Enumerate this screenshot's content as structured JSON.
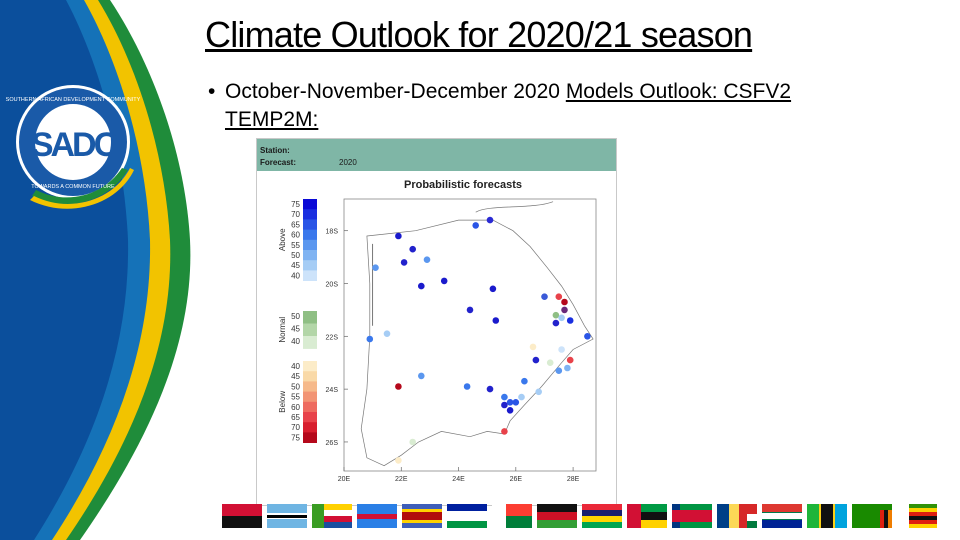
{
  "slide": {
    "title": "Climate Outlook for 2020/21 season",
    "bullet_symbol": "•",
    "bullet_plain": "October-November-December 2020 ",
    "bullet_underlined": "Models Outlook: CSFV2 TEMP2M:"
  },
  "logo": {
    "ring_text_top": "SOUTHERN AFRICAN DEVELOPMENT COMMUNITY",
    "ring_text_bottom": "TOWARDS A COMMON FUTURE",
    "monogram": "SADC",
    "icon": "sadc-logo-icon"
  },
  "figure": {
    "station_label": "Station:",
    "forecast_label": "Forecast:",
    "forecast_value": "2020",
    "title": "Probabilistic forecasts",
    "legend": {
      "groups": [
        {
          "label": "Above",
          "ticks": [
            "75",
            "70",
            "65",
            "60",
            "55",
            "50",
            "45",
            "40"
          ]
        },
        {
          "label": "Normal",
          "ticks": [
            "50",
            "45",
            "40"
          ]
        },
        {
          "label": "Below",
          "ticks": [
            "40",
            "45",
            "50",
            "55",
            "60",
            "65",
            "70",
            "75"
          ]
        }
      ],
      "colors": {
        "above": [
          "#0a0ad6",
          "#1a2fe0",
          "#2a55e6",
          "#3a78ec",
          "#5b97ef",
          "#7fb3f2",
          "#a6cdf5",
          "#cde3fa"
        ],
        "normal": [
          "#8fbf84",
          "#b3d6a8",
          "#d9ecd2"
        ],
        "below": [
          "#fcecc8",
          "#f9d9a7",
          "#f6b98a",
          "#f29474",
          "#ee6b5f",
          "#e8424a",
          "#d81e2e",
          "#b5081b"
        ]
      }
    },
    "map": {
      "y_ticks": [
        "18S",
        "20S",
        "22S",
        "24S",
        "26S"
      ],
      "x_ticks": [
        "20E",
        "22E",
        "24E",
        "26E",
        "28E"
      ],
      "x_range": [
        20,
        28.8
      ],
      "y_range": [
        -16.8,
        -27.1
      ],
      "stations": [
        {
          "lon": 24.6,
          "lat": -17.8,
          "color": "#2a55e6"
        },
        {
          "lon": 25.1,
          "lat": -17.6,
          "color": "#2a2ad4"
        },
        {
          "lon": 21.9,
          "lat": -18.2,
          "color": "#1a1acc"
        },
        {
          "lon": 22.4,
          "lat": -18.7,
          "color": "#2222cc"
        },
        {
          "lon": 22.1,
          "lat": -19.2,
          "color": "#2222cc"
        },
        {
          "lon": 22.9,
          "lat": -19.1,
          "color": "#5b97ef"
        },
        {
          "lon": 21.1,
          "lat": -19.4,
          "color": "#5b97ef"
        },
        {
          "lon": 23.5,
          "lat": -19.9,
          "color": "#1a1acc"
        },
        {
          "lon": 22.7,
          "lat": -20.1,
          "color": "#1a1acc"
        },
        {
          "lon": 25.2,
          "lat": -20.2,
          "color": "#1a1acc"
        },
        {
          "lon": 27.0,
          "lat": -20.5,
          "color": "#3a5ad8"
        },
        {
          "lon": 24.4,
          "lat": -21.0,
          "color": "#2222cc"
        },
        {
          "lon": 25.3,
          "lat": -21.4,
          "color": "#1a1acc"
        },
        {
          "lon": 27.5,
          "lat": -20.5,
          "color": "#e8424a"
        },
        {
          "lon": 27.7,
          "lat": -20.7,
          "color": "#b5081b"
        },
        {
          "lon": 27.7,
          "lat": -21.0,
          "color": "#6a2a7a"
        },
        {
          "lon": 27.4,
          "lat": -21.2,
          "color": "#8fbf84"
        },
        {
          "lon": 27.6,
          "lat": -21.3,
          "color": "#a6cdf5"
        },
        {
          "lon": 27.9,
          "lat": -21.4,
          "color": "#1a2fe0"
        },
        {
          "lon": 27.4,
          "lat": -21.5,
          "color": "#2222cc"
        },
        {
          "lon": 28.5,
          "lat": -22.0,
          "color": "#2a55e6"
        },
        {
          "lon": 21.5,
          "lat": -21.9,
          "color": "#a6cdf5"
        },
        {
          "lon": 20.9,
          "lat": -22.1,
          "color": "#3a78ec"
        },
        {
          "lon": 26.6,
          "lat": -22.4,
          "color": "#fcecc8"
        },
        {
          "lon": 27.6,
          "lat": -22.5,
          "color": "#cde3fa"
        },
        {
          "lon": 27.9,
          "lat": -22.9,
          "color": "#e8424a"
        },
        {
          "lon": 26.7,
          "lat": -22.9,
          "color": "#2222cc"
        },
        {
          "lon": 27.2,
          "lat": -23.0,
          "color": "#d9ecd2"
        },
        {
          "lon": 27.8,
          "lat": -23.2,
          "color": "#7fb3f2"
        },
        {
          "lon": 27.5,
          "lat": -23.3,
          "color": "#5b97ef"
        },
        {
          "lon": 22.7,
          "lat": -23.5,
          "color": "#5b97ef"
        },
        {
          "lon": 26.3,
          "lat": -23.7,
          "color": "#3a78ec"
        },
        {
          "lon": 21.9,
          "lat": -23.9,
          "color": "#b5081b"
        },
        {
          "lon": 24.3,
          "lat": -23.9,
          "color": "#3a78ec"
        },
        {
          "lon": 25.1,
          "lat": -24.0,
          "color": "#2222cc"
        },
        {
          "lon": 26.8,
          "lat": -24.1,
          "color": "#a6cdf5"
        },
        {
          "lon": 25.6,
          "lat": -24.3,
          "color": "#3a78ec"
        },
        {
          "lon": 26.2,
          "lat": -24.3,
          "color": "#a6cdf5"
        },
        {
          "lon": 25.8,
          "lat": -24.5,
          "color": "#2a55e6"
        },
        {
          "lon": 26.0,
          "lat": -24.5,
          "color": "#2a55e6"
        },
        {
          "lon": 25.6,
          "lat": -24.6,
          "color": "#2222cc"
        },
        {
          "lon": 25.8,
          "lat": -24.8,
          "color": "#1a1acc"
        },
        {
          "lon": 25.6,
          "lat": -25.6,
          "color": "#e8424a"
        },
        {
          "lon": 22.4,
          "lat": -26.0,
          "color": "#d9ecd2"
        },
        {
          "lon": 21.9,
          "lat": -26.7,
          "color": "#fcecc8"
        }
      ]
    }
  },
  "flags": {
    "countries": [
      "Angola",
      "Botswana",
      "Comoros",
      "DR Congo",
      "Eswatini",
      "Lesotho",
      "Madagascar",
      "Malawi",
      "Mauritius",
      "Mozambique",
      "Namibia",
      "Seychelles",
      "South Africa",
      "Tanzania",
      "Zambia",
      "Zimbabwe"
    ]
  }
}
